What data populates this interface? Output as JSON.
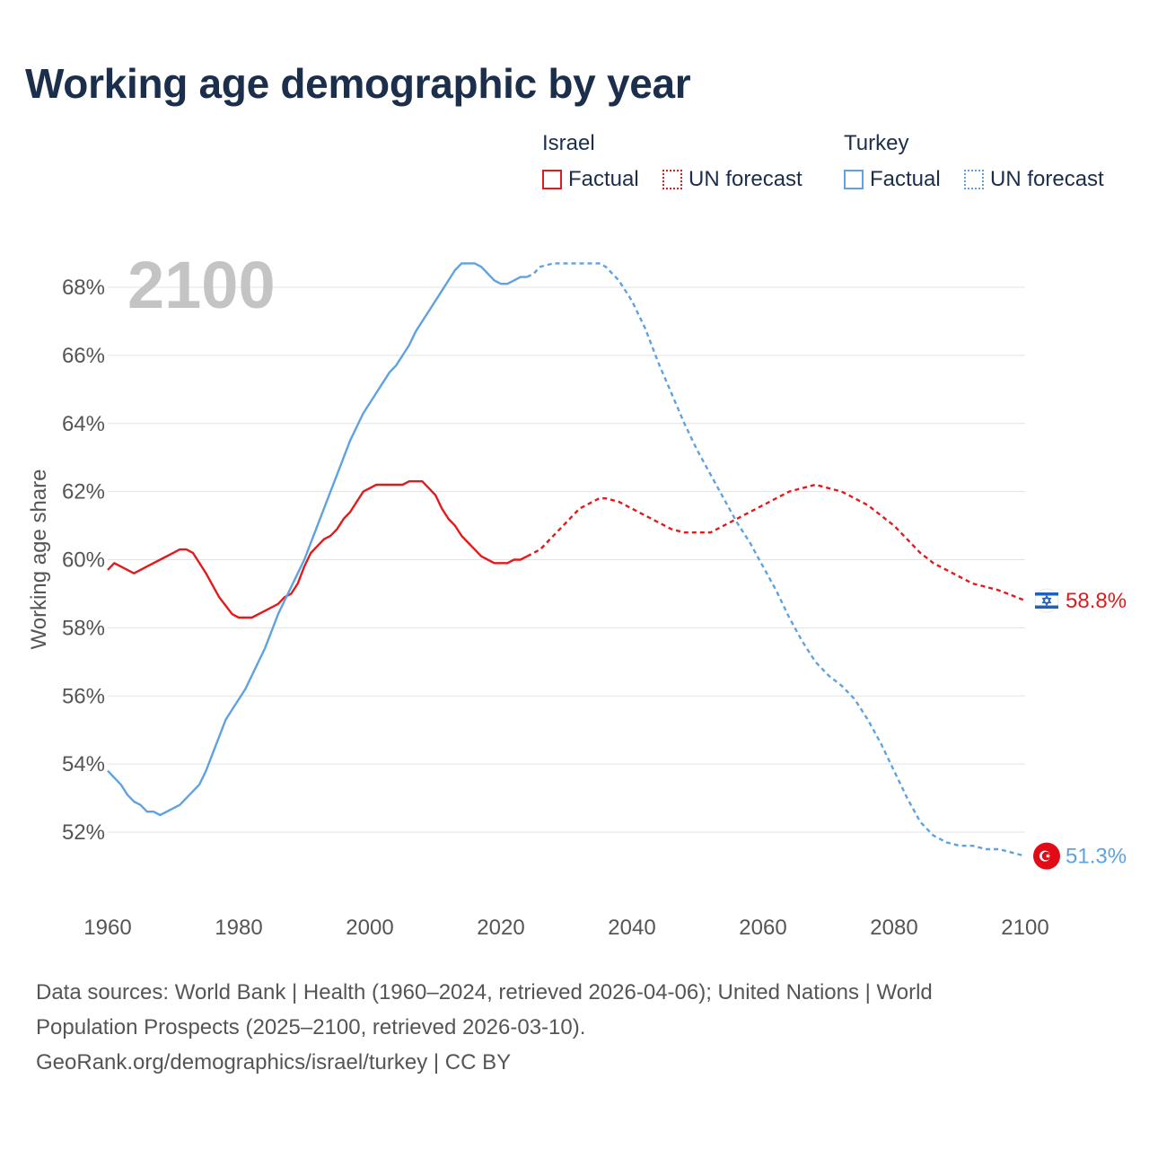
{
  "title": "Working age demographic by year",
  "legend": {
    "groups": [
      {
        "name": "Israel",
        "factual_label": "Factual",
        "forecast_label": "UN forecast"
      },
      {
        "name": "Turkey",
        "factual_label": "Factual",
        "forecast_label": "UN forecast"
      }
    ]
  },
  "colors": {
    "israel": "#e31a1c",
    "turkey": "#5fa2e0",
    "grid": "#e3e3e3",
    "axis_text": "#555555",
    "year_label": "#c4c4c4"
  },
  "icons": {
    "israel": "israel-flag-icon",
    "turkey": "turkey-flag-icon"
  },
  "sources": {
    "line1": "Data sources: World Bank | Health (1960–2024, retrieved 2026-04-06); United Nations | World",
    "line2": "Population Prospects (2025–2100, retrieved 2026-03-10).",
    "line3": "GeoRank.org/demographics/israel/turkey | CC BY"
  },
  "chart_data": {
    "type": "line",
    "title": "Working age demographic by year",
    "current_year_label": "2100",
    "xlabel": "",
    "ylabel": "Working age share",
    "xlim": [
      1960,
      2100
    ],
    "ylim": [
      50.8,
      69.0
    ],
    "x_ticks": [
      1960,
      1980,
      2000,
      2020,
      2040,
      2060,
      2080,
      2100
    ],
    "y_ticks": [
      52,
      54,
      56,
      58,
      60,
      62,
      64,
      66,
      68
    ],
    "y_tick_labels": [
      "52%",
      "54%",
      "56%",
      "58%",
      "60%",
      "62%",
      "64%",
      "66%",
      "68%"
    ],
    "grid": true,
    "factual_range": [
      1960,
      2024
    ],
    "forecast_range": [
      2024,
      2100
    ],
    "series": [
      {
        "name": "Israel",
        "end_label": "58.8%",
        "points": [
          [
            1960,
            59.7
          ],
          [
            1961,
            59.9
          ],
          [
            1962,
            59.8
          ],
          [
            1964,
            59.6
          ],
          [
            1966,
            59.8
          ],
          [
            1968,
            60.0
          ],
          [
            1970,
            60.2
          ],
          [
            1971,
            60.3
          ],
          [
            1972,
            60.3
          ],
          [
            1973,
            60.2
          ],
          [
            1975,
            59.6
          ],
          [
            1977,
            58.9
          ],
          [
            1979,
            58.4
          ],
          [
            1980,
            58.3
          ],
          [
            1982,
            58.3
          ],
          [
            1984,
            58.5
          ],
          [
            1986,
            58.7
          ],
          [
            1987,
            58.9
          ],
          [
            1988,
            59.0
          ],
          [
            1989,
            59.3
          ],
          [
            1990,
            59.8
          ],
          [
            1991,
            60.2
          ],
          [
            1992,
            60.4
          ],
          [
            1993,
            60.6
          ],
          [
            1994,
            60.7
          ],
          [
            1995,
            60.9
          ],
          [
            1996,
            61.2
          ],
          [
            1997,
            61.4
          ],
          [
            1998,
            61.7
          ],
          [
            1999,
            62.0
          ],
          [
            2000,
            62.1
          ],
          [
            2001,
            62.2
          ],
          [
            2003,
            62.2
          ],
          [
            2005,
            62.2
          ],
          [
            2006,
            62.3
          ],
          [
            2008,
            62.3
          ],
          [
            2010,
            61.9
          ],
          [
            2011,
            61.5
          ],
          [
            2012,
            61.2
          ],
          [
            2013,
            61.0
          ],
          [
            2014,
            60.7
          ],
          [
            2015,
            60.5
          ],
          [
            2016,
            60.3
          ],
          [
            2017,
            60.1
          ],
          [
            2018,
            60.0
          ],
          [
            2019,
            59.9
          ],
          [
            2021,
            59.9
          ],
          [
            2022,
            60.0
          ],
          [
            2023,
            60.0
          ],
          [
            2024,
            60.1
          ],
          [
            2026,
            60.3
          ],
          [
            2028,
            60.7
          ],
          [
            2030,
            61.1
          ],
          [
            2032,
            61.5
          ],
          [
            2034,
            61.7
          ],
          [
            2035,
            61.8
          ],
          [
            2036,
            61.8
          ],
          [
            2038,
            61.7
          ],
          [
            2040,
            61.5
          ],
          [
            2042,
            61.3
          ],
          [
            2044,
            61.1
          ],
          [
            2046,
            60.9
          ],
          [
            2048,
            60.8
          ],
          [
            2050,
            60.8
          ],
          [
            2052,
            60.8
          ],
          [
            2054,
            61.0
          ],
          [
            2056,
            61.2
          ],
          [
            2058,
            61.4
          ],
          [
            2060,
            61.6
          ],
          [
            2062,
            61.8
          ],
          [
            2064,
            62.0
          ],
          [
            2066,
            62.1
          ],
          [
            2068,
            62.2
          ],
          [
            2070,
            62.1
          ],
          [
            2072,
            62.0
          ],
          [
            2074,
            61.8
          ],
          [
            2076,
            61.6
          ],
          [
            2078,
            61.3
          ],
          [
            2080,
            61.0
          ],
          [
            2082,
            60.6
          ],
          [
            2084,
            60.2
          ],
          [
            2086,
            59.9
          ],
          [
            2088,
            59.7
          ],
          [
            2090,
            59.5
          ],
          [
            2092,
            59.3
          ],
          [
            2094,
            59.2
          ],
          [
            2096,
            59.1
          ],
          [
            2098,
            58.95
          ],
          [
            2100,
            58.8
          ]
        ]
      },
      {
        "name": "Turkey",
        "end_label": "51.3%",
        "points": [
          [
            1960,
            53.8
          ],
          [
            1962,
            53.4
          ],
          [
            1963,
            53.1
          ],
          [
            1964,
            52.9
          ],
          [
            1965,
            52.8
          ],
          [
            1966,
            52.6
          ],
          [
            1967,
            52.6
          ],
          [
            1968,
            52.5
          ],
          [
            1970,
            52.7
          ],
          [
            1971,
            52.8
          ],
          [
            1972,
            53.0
          ],
          [
            1974,
            53.4
          ],
          [
            1975,
            53.8
          ],
          [
            1976,
            54.3
          ],
          [
            1977,
            54.8
          ],
          [
            1978,
            55.3
          ],
          [
            1979,
            55.6
          ],
          [
            1980,
            55.9
          ],
          [
            1981,
            56.2
          ],
          [
            1982,
            56.6
          ],
          [
            1983,
            57.0
          ],
          [
            1984,
            57.4
          ],
          [
            1985,
            57.9
          ],
          [
            1986,
            58.4
          ],
          [
            1987,
            58.8
          ],
          [
            1988,
            59.2
          ],
          [
            1989,
            59.6
          ],
          [
            1990,
            60.0
          ],
          [
            1991,
            60.5
          ],
          [
            1992,
            61.0
          ],
          [
            1993,
            61.5
          ],
          [
            1994,
            62.0
          ],
          [
            1995,
            62.5
          ],
          [
            1996,
            63.0
          ],
          [
            1997,
            63.5
          ],
          [
            1998,
            63.9
          ],
          [
            1999,
            64.3
          ],
          [
            2000,
            64.6
          ],
          [
            2001,
            64.9
          ],
          [
            2002,
            65.2
          ],
          [
            2003,
            65.5
          ],
          [
            2004,
            65.7
          ],
          [
            2005,
            66.0
          ],
          [
            2006,
            66.3
          ],
          [
            2007,
            66.7
          ],
          [
            2008,
            67.0
          ],
          [
            2009,
            67.3
          ],
          [
            2010,
            67.6
          ],
          [
            2011,
            67.9
          ],
          [
            2012,
            68.2
          ],
          [
            2013,
            68.5
          ],
          [
            2014,
            68.7
          ],
          [
            2015,
            68.7
          ],
          [
            2016,
            68.7
          ],
          [
            2017,
            68.6
          ],
          [
            2018,
            68.4
          ],
          [
            2019,
            68.2
          ],
          [
            2020,
            68.1
          ],
          [
            2021,
            68.1
          ],
          [
            2022,
            68.2
          ],
          [
            2023,
            68.3
          ],
          [
            2024,
            68.3
          ],
          [
            2025,
            68.4
          ],
          [
            2026,
            68.6
          ],
          [
            2028,
            68.7
          ],
          [
            2030,
            68.7
          ],
          [
            2032,
            68.7
          ],
          [
            2034,
            68.7
          ],
          [
            2035,
            68.7
          ],
          [
            2036,
            68.6
          ],
          [
            2038,
            68.2
          ],
          [
            2040,
            67.6
          ],
          [
            2042,
            66.8
          ],
          [
            2044,
            65.8
          ],
          [
            2046,
            64.9
          ],
          [
            2048,
            64.0
          ],
          [
            2050,
            63.2
          ],
          [
            2052,
            62.5
          ],
          [
            2054,
            61.8
          ],
          [
            2056,
            61.1
          ],
          [
            2058,
            60.5
          ],
          [
            2060,
            59.8
          ],
          [
            2062,
            59.1
          ],
          [
            2064,
            58.3
          ],
          [
            2066,
            57.6
          ],
          [
            2068,
            57.0
          ],
          [
            2070,
            56.6
          ],
          [
            2072,
            56.3
          ],
          [
            2074,
            55.9
          ],
          [
            2076,
            55.3
          ],
          [
            2078,
            54.6
          ],
          [
            2080,
            53.8
          ],
          [
            2082,
            53.0
          ],
          [
            2084,
            52.3
          ],
          [
            2086,
            51.9
          ],
          [
            2088,
            51.7
          ],
          [
            2090,
            51.6
          ],
          [
            2092,
            51.6
          ],
          [
            2094,
            51.5
          ],
          [
            2096,
            51.5
          ],
          [
            2098,
            51.4
          ],
          [
            2100,
            51.3
          ]
        ]
      }
    ]
  }
}
